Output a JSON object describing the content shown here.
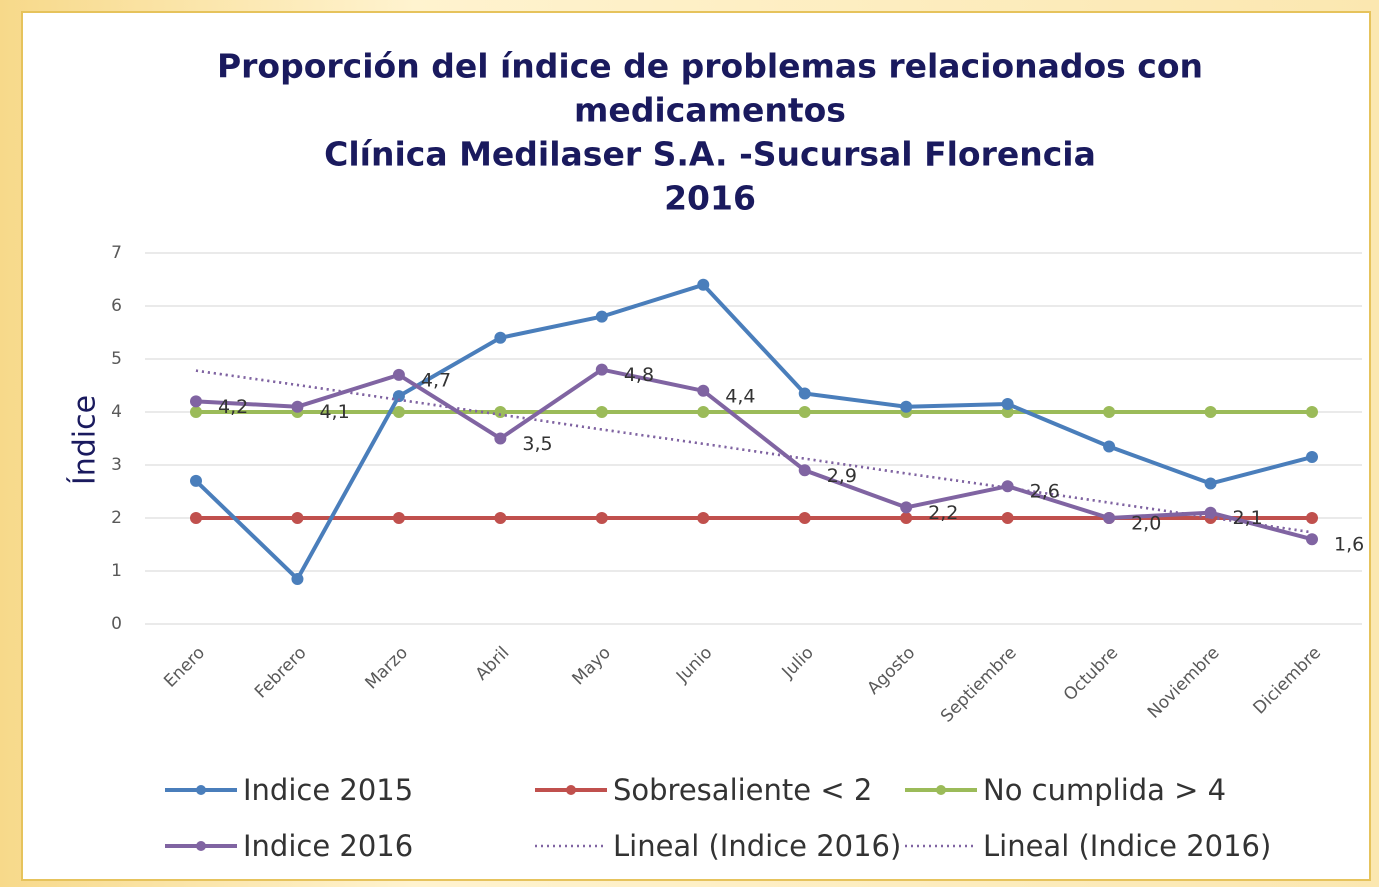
{
  "chart_data": {
    "type": "line",
    "title": [
      "Proporción del índice de problemas relacionados con",
      "medicamentos",
      "Clínica Medilaser S.A. -Sucursal Florencia",
      "2016"
    ],
    "y_label": "Índice",
    "categories": [
      "Enero",
      "Febrero",
      "Marzo",
      "Abril",
      "Mayo",
      "Junio",
      "Julio",
      "Agosto",
      "Septiembre",
      "Octubre",
      "Noviembre",
      "Diciembre"
    ],
    "ylim": [
      0,
      7
    ],
    "yticks": [
      0,
      1,
      2,
      3,
      4,
      5,
      6,
      7
    ],
    "grid": true,
    "legend": "bottom",
    "series": [
      {
        "name": "Indice 2015",
        "color": "#4a7ebb",
        "marker": true,
        "values": [
          2.7,
          0.85,
          4.3,
          5.4,
          5.8,
          6.4,
          4.35,
          4.1,
          4.15,
          3.35,
          2.65,
          3.15
        ]
      },
      {
        "name": "Indice 2016",
        "color": "#8064a2",
        "marker": true,
        "values": [
          4.2,
          4.1,
          4.7,
          3.5,
          4.8,
          4.4,
          2.9,
          2.2,
          2.6,
          2.0,
          2.1,
          1.6
        ],
        "value_labels": [
          "4,2",
          "4,1",
          "4,7",
          "3,5",
          "4,8",
          "4,4",
          "2,9",
          "2,2",
          "2,6",
          "2,0",
          "2,1",
          "1,6"
        ]
      },
      {
        "name": "Sobresaliente < 2",
        "color": "#c0504d",
        "marker": true,
        "values": [
          2,
          2,
          2,
          2,
          2,
          2,
          2,
          2,
          2,
          2,
          2,
          2
        ]
      },
      {
        "name": "Lineal (Indice 2016)",
        "color": "#8064a2",
        "dotted": true,
        "values": [
          4.78,
          4.51,
          4.23,
          3.95,
          3.67,
          3.4,
          3.12,
          2.84,
          2.57,
          2.29,
          2.01,
          1.73
        ]
      },
      {
        "name": "No cumplida > 4",
        "color": "#9bbb59",
        "marker": true,
        "values": [
          4,
          4,
          4,
          4,
          4,
          4,
          4,
          4,
          4,
          4,
          4,
          4
        ]
      },
      {
        "name": "Lineal (Indice 2016)",
        "color": "#8064a2",
        "dotted": true,
        "values": [
          4.78,
          4.51,
          4.23,
          3.95,
          3.67,
          3.4,
          3.12,
          2.84,
          2.57,
          2.29,
          2.01,
          1.73
        ]
      }
    ]
  }
}
